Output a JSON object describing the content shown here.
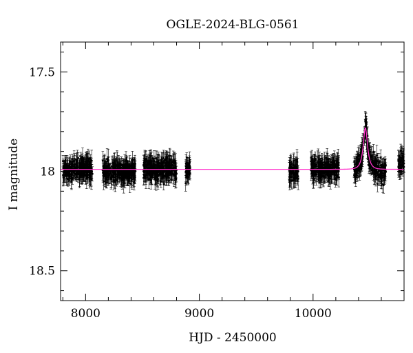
{
  "chart_data": {
    "type": "scatter",
    "title": "OGLE-2024-BLG-0561",
    "xlabel": "HJD - 2450000",
    "ylabel": "I magnitude",
    "xlim": [
      7780,
      10800
    ],
    "ylim": [
      18.65,
      17.35
    ],
    "y_inverted": true,
    "grid": false,
    "x_ticks": [
      8000,
      9000,
      10000
    ],
    "x_tick_labels": [
      "8000",
      "9000",
      "10000"
    ],
    "y_ticks": [
      17.5,
      18,
      18.5
    ],
    "y_tick_labels": [
      "17.5",
      "18",
      "18.5"
    ],
    "baseline_mag": 17.99,
    "observation_seasons": [
      {
        "start": 7800,
        "end": 8060,
        "mean_mag": 17.99,
        "scatter": 0.05,
        "errorbar": 0.04
      },
      {
        "start": 8150,
        "end": 8440,
        "mean_mag": 18.0,
        "scatter": 0.05,
        "errorbar": 0.04
      },
      {
        "start": 8510,
        "end": 8800,
        "mean_mag": 17.99,
        "scatter": 0.05,
        "errorbar": 0.04
      },
      {
        "start": 8880,
        "end": 8920,
        "mean_mag": 17.99,
        "scatter": 0.04,
        "errorbar": 0.04
      },
      {
        "start": 9790,
        "end": 9870,
        "mean_mag": 18.0,
        "scatter": 0.05,
        "errorbar": 0.04
      },
      {
        "start": 9980,
        "end": 10230,
        "mean_mag": 17.99,
        "scatter": 0.05,
        "errorbar": 0.04
      },
      {
        "start": 10360,
        "end": 10640,
        "mean_mag": 17.99,
        "scatter": 0.05,
        "errorbar": 0.04
      },
      {
        "start": 10750,
        "end": 10800,
        "mean_mag": 17.96,
        "scatter": 0.04,
        "errorbar": 0.04
      }
    ],
    "isolated_points": [
      {
        "x": 8880,
        "y": 18.06
      },
      {
        "x": 10190,
        "y": 17.99
      },
      {
        "x": 10620,
        "y": 18.07
      },
      {
        "x": 10780,
        "y": 17.91
      }
    ],
    "model": {
      "name": "",
      "color": "#ff33cc",
      "type": "point-lens",
      "t0": 10460,
      "u0": 0.52,
      "tE": 38,
      "baseline": 17.99,
      "peak_mag": 17.78
    },
    "data_color": "#000000"
  }
}
